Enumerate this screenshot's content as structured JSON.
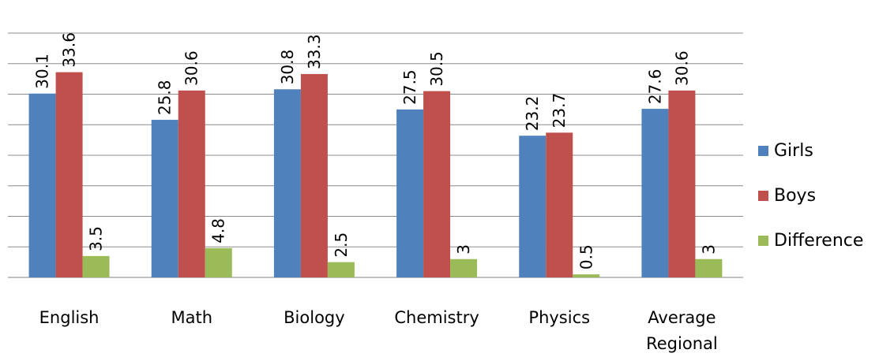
{
  "chart_data": {
    "type": "bar",
    "categories": [
      [
        "English"
      ],
      [
        "Math"
      ],
      [
        "Biology"
      ],
      [
        "Chemistry"
      ],
      [
        "Physics"
      ],
      [
        "Average",
        "Regional"
      ]
    ],
    "series": [
      {
        "name": "Girls",
        "color": "#4F81BD",
        "values": [
          30.1,
          25.8,
          30.8,
          27.5,
          23.2,
          27.6
        ],
        "labels": [
          "30.1",
          "25.8",
          "30.8",
          "27.5",
          "23.2",
          "27.6"
        ]
      },
      {
        "name": "Boys",
        "color": "#C0504D",
        "values": [
          33.6,
          30.6,
          33.3,
          30.5,
          23.7,
          30.6
        ],
        "labels": [
          "33.6",
          "30.6",
          "33.3",
          "30.5",
          "23.7",
          "30.6"
        ]
      },
      {
        "name": "Difference",
        "color": "#9BBB59",
        "values": [
          3.5,
          4.8,
          2.5,
          3,
          0.5,
          3
        ],
        "labels": [
          "3.5",
          "4.8",
          "2.5",
          "3",
          "0.5",
          "3"
        ]
      }
    ],
    "ylim": [
      0,
      40
    ],
    "grid": true,
    "legend": "right",
    "data_labels": "rotated-vertical"
  }
}
